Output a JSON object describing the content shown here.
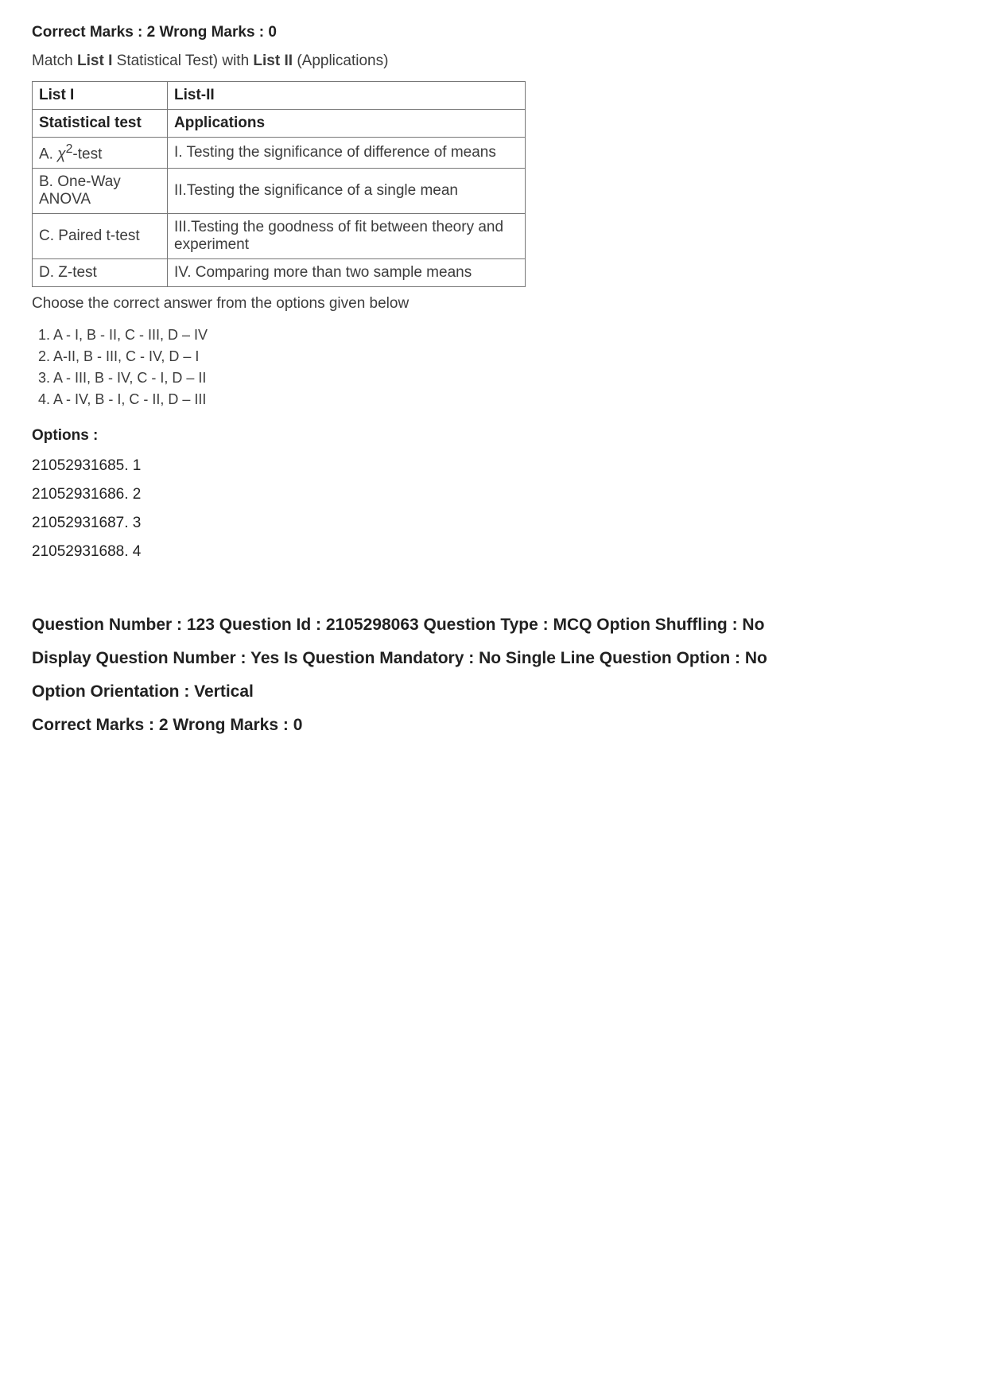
{
  "marks": {
    "correct_label": "Correct Marks : 2",
    "wrong_label": "Wrong Marks : 0"
  },
  "instruction": {
    "prefix": "Match ",
    "list1_bold": "List I",
    "mid": " Statistical Test) with ",
    "list2_bold": "List II",
    "suffix": " (Applications)"
  },
  "table": {
    "header_row": {
      "c1": "List I",
      "c2": "List-II"
    },
    "subheader_row": {
      "c1": "Statistical test",
      "c2": "Applications"
    },
    "rows": [
      {
        "c1_pre": "A. ",
        "c1_chi": "χ",
        "c1_sup": "2",
        "c1_post": "-test",
        "c2": "I. Testing the significance of difference of means"
      },
      {
        "c1": "B. One-Way ANOVA",
        "c2": "II.Testing the significance of a single mean"
      },
      {
        "c1": "C. Paired t-test",
        "c2": "III.Testing the goodness of fit between theory and experiment"
      },
      {
        "c1": "D. Z-test",
        "c2": "IV. Comparing more than two sample means"
      }
    ]
  },
  "choose_text": "Choose the correct answer from the options given below",
  "combinations": [
    "1. A - I, B - II, C - III, D – IV",
    "2. A-II, B - III, C - IV, D – I",
    "3. A - III, B - IV, C - I, D – II",
    "4. A - IV, B - I, C - II, D – III"
  ],
  "options": {
    "heading": "Options :",
    "items": [
      "21052931685. 1",
      "21052931686. 2",
      "21052931687. 3",
      "21052931688. 4"
    ]
  },
  "question_meta": {
    "line1": "Question Number : 123 Question Id : 2105298063 Question Type : MCQ Option Shuffling : No",
    "line2": "Display Question Number : Yes Is Question Mandatory : No Single Line Question Option : No",
    "line3": "Option Orientation : Vertical",
    "line4": "Correct Marks : 2 Wrong Marks : 0"
  }
}
